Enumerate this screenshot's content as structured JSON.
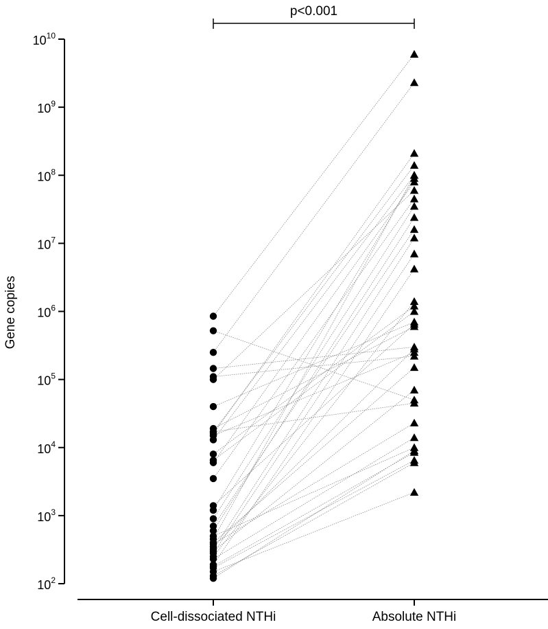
{
  "chart_data": {
    "type": "scatter",
    "subtype": "paired before-after plot",
    "ylabel": "Gene copies",
    "yscale": "log10",
    "ylim": [
      100,
      10000000000
    ],
    "yticks": [
      {
        "base": "10",
        "exp": "2"
      },
      {
        "base": "10",
        "exp": "3"
      },
      {
        "base": "10",
        "exp": "4"
      },
      {
        "base": "10",
        "exp": "5"
      },
      {
        "base": "10",
        "exp": "6"
      },
      {
        "base": "10",
        "exp": "7"
      },
      {
        "base": "10",
        "exp": "8"
      },
      {
        "base": "10",
        "exp": "9"
      },
      {
        "base": "10",
        "exp": "10"
      }
    ],
    "categories": [
      "Cell-dissociated NTHi",
      "Absolute NTHi"
    ],
    "markers": [
      "circle",
      "triangle"
    ],
    "marker_color": "#000000",
    "line_color": "#8a8a8a",
    "significance": {
      "label": "p<0.001",
      "between": [
        0,
        1
      ]
    },
    "pairs": [
      [
        850000,
        6000000000
      ],
      [
        520000,
        50000
      ],
      [
        250000,
        2300000000
      ],
      [
        145000,
        300000
      ],
      [
        110000,
        220000
      ],
      [
        100000,
        60000000
      ],
      [
        40000,
        700000
      ],
      [
        19000,
        600000
      ],
      [
        17000,
        140000000
      ],
      [
        17000,
        45000
      ],
      [
        16000,
        210000000
      ],
      [
        15000,
        250000
      ],
      [
        13000,
        100000000
      ],
      [
        8000,
        1200000
      ],
      [
        6500,
        1000000
      ],
      [
        6000,
        80000000
      ],
      [
        3500,
        45000000
      ],
      [
        1400,
        650000
      ],
      [
        1200,
        90000000
      ],
      [
        900,
        35000000
      ],
      [
        700,
        16000000
      ],
      [
        600,
        24000000
      ],
      [
        500,
        10000
      ],
      [
        450,
        100000000
      ],
      [
        400,
        150000
      ],
      [
        380,
        23000
      ],
      [
        350,
        280000
      ],
      [
        320,
        12000000
      ],
      [
        300,
        70000
      ],
      [
        280,
        7000000
      ],
      [
        250,
        1400000
      ],
      [
        230,
        14000
      ],
      [
        190,
        4200000
      ],
      [
        180,
        8500
      ],
      [
        170,
        6500
      ],
      [
        150,
        2200
      ],
      [
        130,
        6000
      ],
      [
        120,
        9000
      ]
    ]
  }
}
